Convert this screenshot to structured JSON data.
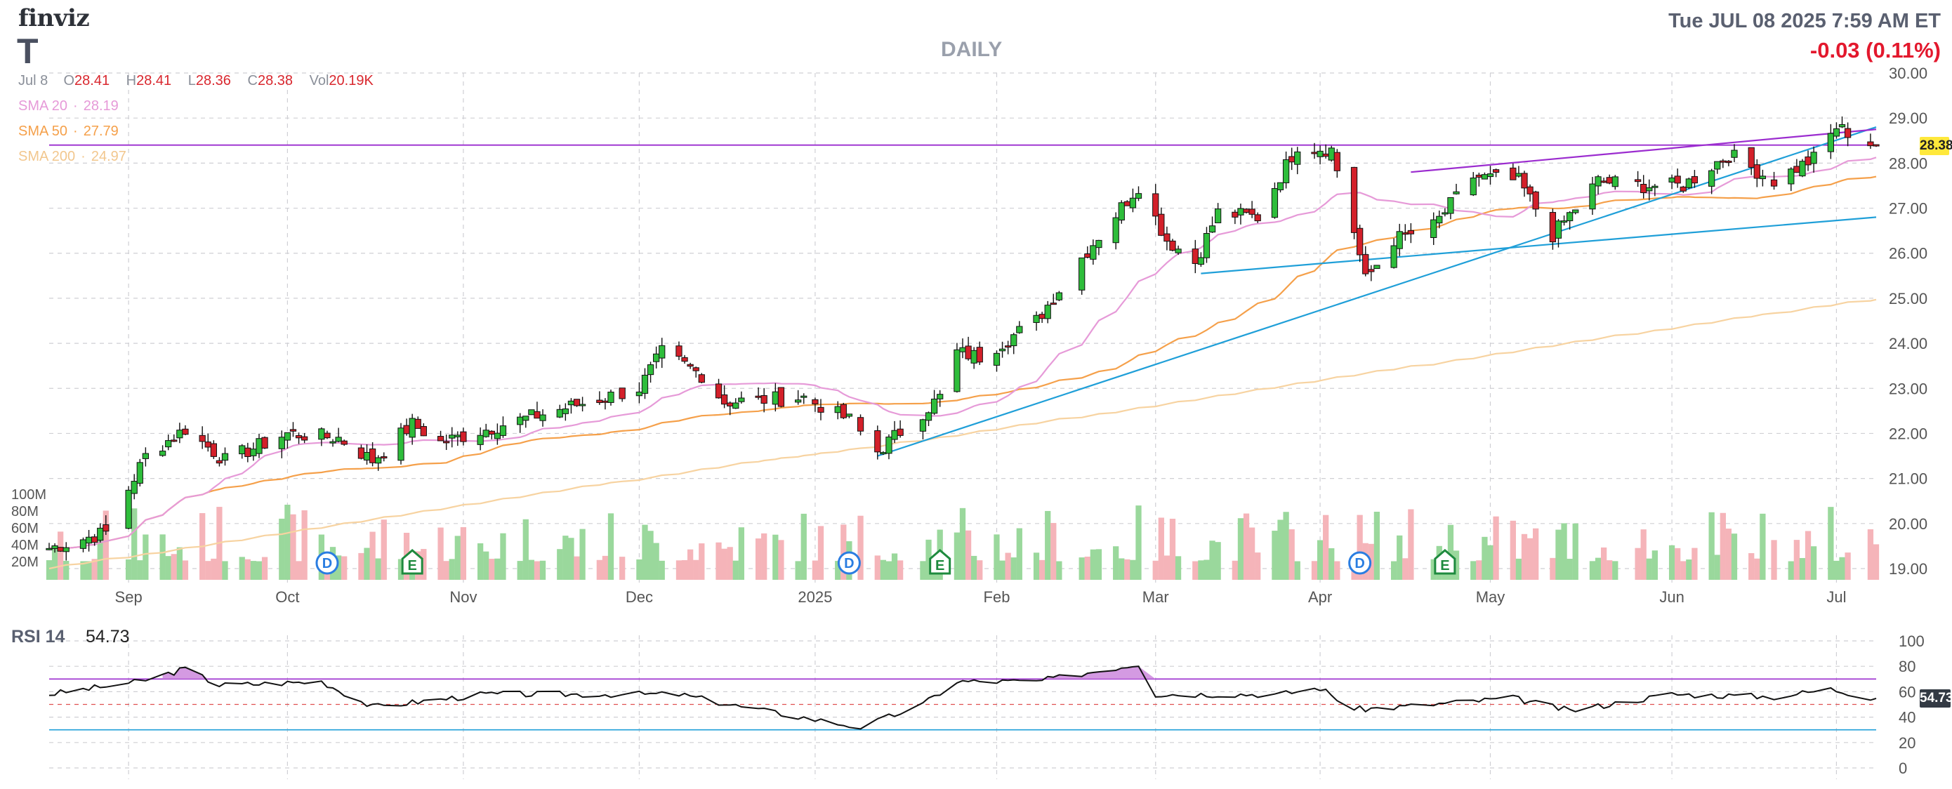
{
  "header": {
    "logo": "finviz",
    "ticker": "T",
    "period": "DAILY",
    "datetime": "Tue JUL 08 2025 7:59 AM ET",
    "change": "-0.03 (0.11%)"
  },
  "ohlc": {
    "date": "Jul 8",
    "o_label": "O",
    "o": "28.41",
    "h_label": "H",
    "h": "28.41",
    "l_label": "L",
    "l": "28.36",
    "c_label": "C",
    "c": "28.38",
    "vol_label": "Vol",
    "vol": "20.19K"
  },
  "sma": [
    {
      "label": "SMA 20",
      "value": "28.19",
      "color": "#e69ad8"
    },
    {
      "label": "SMA 50",
      "value": "27.79",
      "color": "#f5a04a"
    },
    {
      "label": "SMA 200",
      "value": "24.97",
      "color": "#f7d3a1"
    }
  ],
  "price_tag": "28.38",
  "rsi": {
    "label": "RSI 14",
    "value": "54.73",
    "tag": "54.73"
  },
  "colors": {
    "up": "#2ebd3b",
    "down": "#d3202a",
    "vol_up": "#9ad89c",
    "vol_down": "#f5b4b9",
    "trend_blue": "#1f9fd8",
    "trend_purple": "#9b2ccf",
    "rsi_fill": "#cc88dd",
    "rsi_line": "#111111",
    "grid": "#cfcfd4"
  },
  "chart_data": [
    {
      "type": "candlestick",
      "title": "DAILY",
      "ylim": [
        18.5,
        30.2
      ],
      "yticks": [
        "19.00",
        "20.00",
        "21.00",
        "22.00",
        "23.00",
        "24.00",
        "25.00",
        "26.00",
        "27.00",
        "28.00",
        "29.00",
        "30.00"
      ],
      "xticks": [
        "Sep",
        "Oct",
        "Nov",
        "Dec",
        "2025",
        "Feb",
        "Mar",
        "Apr",
        "May",
        "Jun",
        "Jul"
      ],
      "volume_ticks": [
        "100M",
        "80M",
        "60M",
        "40M",
        "20M"
      ],
      "event_markers": [
        "D",
        "E",
        "D",
        "E",
        "D",
        "E"
      ],
      "sma_last": {
        "SMA 20": 28.19,
        "SMA 50": 27.79,
        "SMA 200": 24.97
      },
      "close_anchors": [
        {
          "date": "2024-08-20",
          "close": 19.45
        },
        {
          "date": "2024-08-30",
          "close": 19.8
        },
        {
          "date": "2024-09-06",
          "close": 21.5
        },
        {
          "date": "2024-09-13",
          "close": 22.1
        },
        {
          "date": "2024-09-20",
          "close": 21.4
        },
        {
          "date": "2024-10-01",
          "close": 22.0
        },
        {
          "date": "2024-10-10",
          "close": 21.9
        },
        {
          "date": "2024-10-16",
          "close": 21.4
        },
        {
          "date": "2024-10-23",
          "close": 22.2
        },
        {
          "date": "2024-10-28",
          "close": 21.8
        },
        {
          "date": "2024-11-08",
          "close": 22.2
        },
        {
          "date": "2024-11-20",
          "close": 22.6
        },
        {
          "date": "2024-12-02",
          "close": 23.0
        },
        {
          "date": "2024-12-06",
          "close": 23.8
        },
        {
          "date": "2024-12-13",
          "close": 23.3
        },
        {
          "date": "2024-12-17",
          "close": 22.7
        },
        {
          "date": "2024-12-31",
          "close": 22.8
        },
        {
          "date": "2025-01-08",
          "close": 22.3
        },
        {
          "date": "2025-01-13",
          "close": 21.6
        },
        {
          "date": "2025-01-24",
          "close": 22.8
        },
        {
          "date": "2025-01-27",
          "close": 23.8
        },
        {
          "date": "2025-01-31",
          "close": 23.7
        },
        {
          "date": "2025-02-10",
          "close": 24.5
        },
        {
          "date": "2025-02-18",
          "close": 25.9
        },
        {
          "date": "2025-02-28",
          "close": 27.5
        },
        {
          "date": "2025-03-05",
          "close": 26.3
        },
        {
          "date": "2025-03-10",
          "close": 25.8
        },
        {
          "date": "2025-03-14",
          "close": 26.9
        },
        {
          "date": "2025-03-21",
          "close": 26.8
        },
        {
          "date": "2025-03-28",
          "close": 28.4
        },
        {
          "date": "2025-04-03",
          "close": 28.3
        },
        {
          "date": "2025-04-07",
          "close": 26.5
        },
        {
          "date": "2025-04-09",
          "close": 25.4
        },
        {
          "date": "2025-04-14",
          "close": 26.3
        },
        {
          "date": "2025-04-21",
          "close": 26.6
        },
        {
          "date": "2025-04-28",
          "close": 27.7
        },
        {
          "date": "2025-05-06",
          "close": 27.6
        },
        {
          "date": "2025-05-12",
          "close": 26.4
        },
        {
          "date": "2025-05-20",
          "close": 27.6
        },
        {
          "date": "2025-05-28",
          "close": 27.5
        },
        {
          "date": "2025-06-04",
          "close": 27.5
        },
        {
          "date": "2025-06-12",
          "close": 28.2
        },
        {
          "date": "2025-06-20",
          "close": 27.6
        },
        {
          "date": "2025-06-27",
          "close": 28.1
        },
        {
          "date": "2025-07-01",
          "close": 28.8
        },
        {
          "date": "2025-07-08",
          "close": 28.38
        }
      ],
      "volume_range_M": [
        5,
        45
      ]
    },
    {
      "type": "line",
      "title": "RSI 14",
      "ylim": [
        0,
        100
      ],
      "yticks": [
        "0",
        "20",
        "40",
        "60",
        "80",
        "100"
      ],
      "overbought": 70,
      "oversold": 30,
      "last": 54.73,
      "x": [
        "2024-08-20",
        "2024-09-05",
        "2024-09-13",
        "2024-09-19",
        "2024-10-07",
        "2024-10-16",
        "2024-11-05",
        "2024-11-25",
        "2024-12-09",
        "2024-12-20",
        "2025-01-10",
        "2025-01-21",
        "2025-01-27",
        "2025-02-10",
        "2025-02-28",
        "2025-03-03",
        "2025-03-25",
        "2025-04-01",
        "2025-04-07",
        "2025-04-15",
        "2025-05-05",
        "2025-05-15",
        "2025-06-02",
        "2025-06-20",
        "2025-06-30",
        "2025-07-08"
      ],
      "values": [
        58,
        68,
        78,
        65,
        68,
        48,
        58,
        58,
        58,
        48,
        32,
        50,
        68,
        68,
        82,
        58,
        58,
        63,
        46,
        48,
        55,
        45,
        58,
        56,
        62,
        54.73
      ]
    }
  ]
}
